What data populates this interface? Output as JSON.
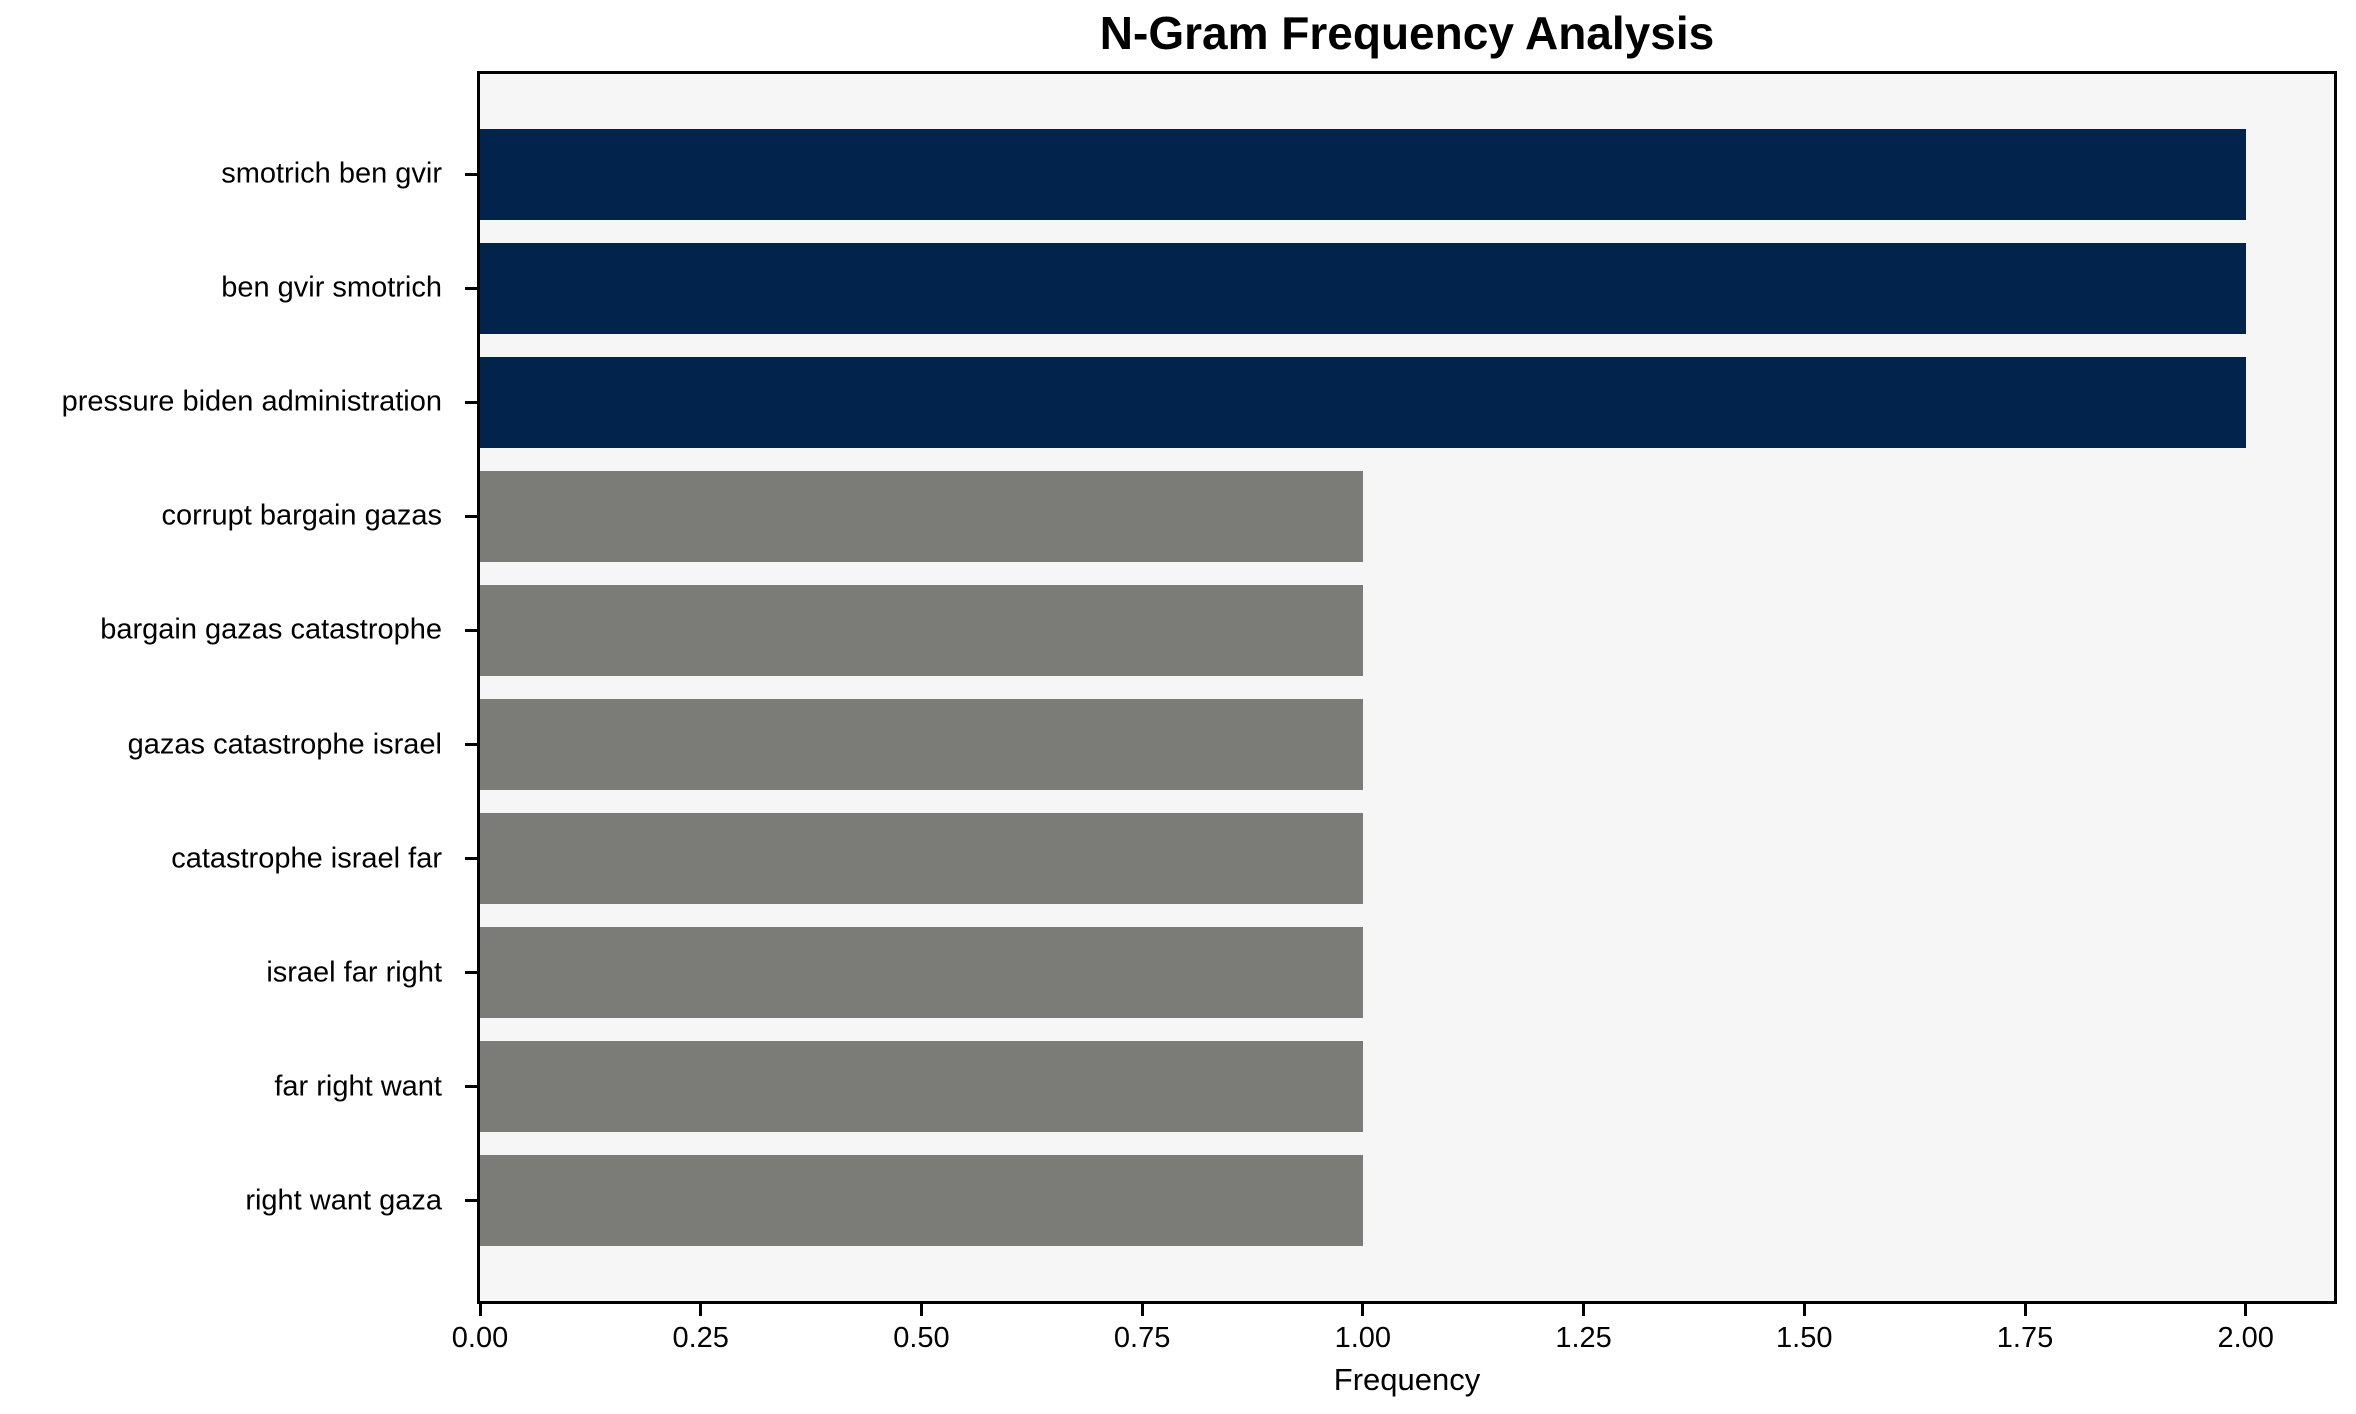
{
  "chart_data": {
    "type": "bar",
    "orientation": "horizontal",
    "title": "N-Gram Frequency Analysis",
    "xlabel": "Frequency",
    "ylabel": "",
    "categories": [
      "smotrich ben gvir",
      "ben gvir smotrich",
      "pressure biden administration",
      "corrupt bargain gazas",
      "bargain gazas catastrophe",
      "gazas catastrophe israel",
      "catastrophe israel far",
      "israel far right",
      "far right want",
      "right want gaza"
    ],
    "values": [
      2,
      2,
      2,
      1,
      1,
      1,
      1,
      1,
      1,
      1
    ],
    "bar_colors": [
      "#02234c",
      "#02234c",
      "#02234c",
      "#7b7b78",
      "#7b7b78",
      "#7b7b78",
      "#7b7b78",
      "#7b7b78",
      "#7b7b78",
      "#7b7b78"
    ],
    "highlight_color": "#02234c",
    "default_color": "#7b7b78",
    "xlim": [
      0,
      2.1
    ],
    "xtick_values": [
      0,
      0.25,
      0.5,
      0.75,
      1.0,
      1.25,
      1.5,
      1.75,
      2.0
    ],
    "xtick_labels": [
      "0.00",
      "0.25",
      "0.50",
      "0.75",
      "1.00",
      "1.25",
      "1.50",
      "1.75",
      "2.00"
    ],
    "plot_background": "#f6f6f6",
    "spine_color": "#000000",
    "grid": "off",
    "legend": "none",
    "bar_height_fraction": 0.8,
    "y_edge_padding_units": 0.88
  }
}
